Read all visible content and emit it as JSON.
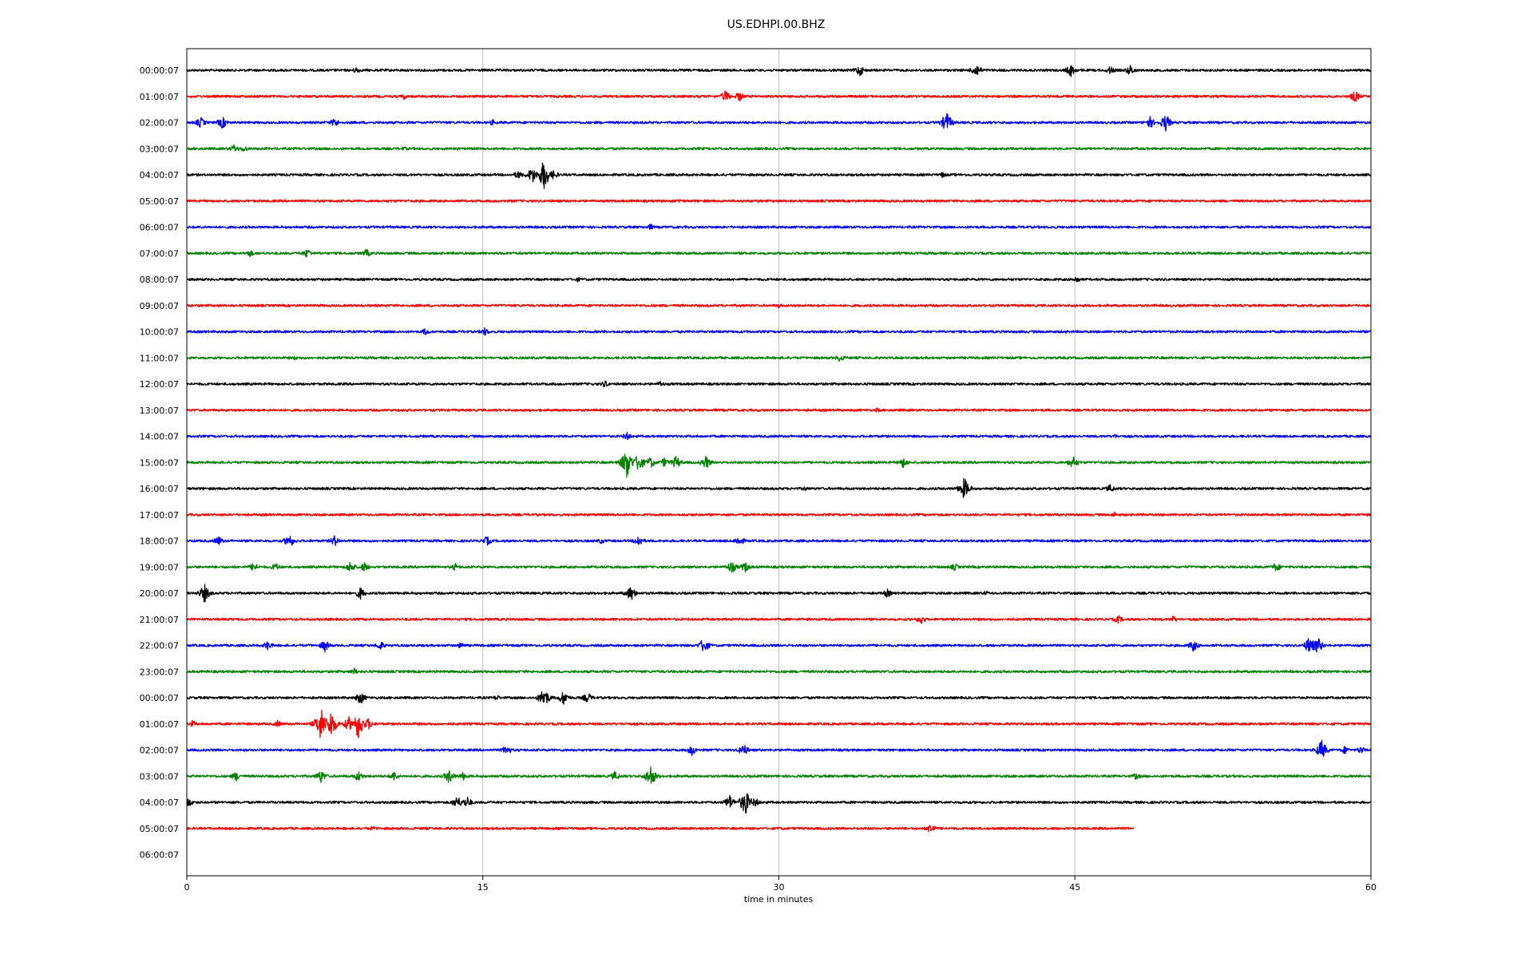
{
  "chart_data": {
    "type": "line",
    "title": "US.EDHPI.00.BHZ",
    "xlabel": "time in minutes",
    "ylabel": "",
    "xlim": [
      0,
      60
    ],
    "x_ticks": [
      "0",
      "15",
      "30",
      "45",
      "60"
    ],
    "x_tick_values": [
      0,
      15,
      30,
      45,
      60
    ],
    "grid": "vertical",
    "legend": "none",
    "trace_colors": [
      "#000000",
      "#ff0000",
      "#0000ff",
      "#008000"
    ],
    "rows": [
      {
        "label": "00:00:07",
        "end_minute": 60,
        "events": [
          [
            34.1,
            0.5
          ],
          [
            40.0,
            0.6
          ],
          [
            44.8,
            0.55
          ],
          [
            47.8,
            0.45
          ],
          [
            8.6,
            0.3
          ],
          [
            46.8,
            0.35
          ]
        ]
      },
      {
        "label": "01:00:07",
        "end_minute": 60,
        "events": [
          [
            27.3,
            0.5
          ],
          [
            28.0,
            0.4
          ],
          [
            59.2,
            0.5
          ],
          [
            11.0,
            0.25
          ]
        ]
      },
      {
        "label": "02:00:07",
        "end_minute": 60,
        "events": [
          [
            0.7,
            0.45
          ],
          [
            1.8,
            0.5
          ],
          [
            7.5,
            0.4
          ],
          [
            38.5,
            0.85
          ],
          [
            48.8,
            0.5
          ],
          [
            49.6,
            0.7
          ],
          [
            15.5,
            0.25
          ]
        ]
      },
      {
        "label": "03:00:07",
        "end_minute": 60,
        "events": [
          [
            2.4,
            0.35
          ],
          [
            2.9,
            0.3
          ],
          [
            11.0,
            0.2
          ]
        ]
      },
      {
        "label": "04:00:07",
        "end_minute": 60,
        "events": [
          [
            17.5,
            0.7
          ],
          [
            18.1,
            1.3
          ],
          [
            18.6,
            0.4
          ],
          [
            16.8,
            0.35
          ],
          [
            38.3,
            0.25
          ]
        ]
      },
      {
        "label": "05:00:07",
        "end_minute": 60,
        "events": [
          [
            25.0,
            0.2
          ]
        ]
      },
      {
        "label": "06:00:07",
        "end_minute": 60,
        "events": [
          [
            23.5,
            0.25
          ]
        ]
      },
      {
        "label": "07:00:07",
        "end_minute": 60,
        "events": [
          [
            3.2,
            0.3
          ],
          [
            6.1,
            0.4
          ],
          [
            9.1,
            0.35
          ]
        ]
      },
      {
        "label": "08:00:07",
        "end_minute": 60,
        "events": [
          [
            45.1,
            0.3
          ],
          [
            19.8,
            0.2
          ]
        ]
      },
      {
        "label": "09:00:07",
        "end_minute": 60,
        "events": [
          [
            30.0,
            0.2
          ]
        ]
      },
      {
        "label": "10:00:07",
        "end_minute": 60,
        "events": [
          [
            12.1,
            0.3
          ],
          [
            15.1,
            0.35
          ]
        ]
      },
      {
        "label": "11:00:07",
        "end_minute": 60,
        "events": [
          [
            33.1,
            0.35
          ],
          [
            5.5,
            0.2
          ]
        ]
      },
      {
        "label": "12:00:07",
        "end_minute": 60,
        "events": [
          [
            21.2,
            0.3
          ],
          [
            24.0,
            0.25
          ]
        ]
      },
      {
        "label": "13:00:07",
        "end_minute": 60,
        "events": [
          [
            35.0,
            0.2
          ]
        ]
      },
      {
        "label": "14:00:07",
        "end_minute": 60,
        "events": [
          [
            22.3,
            0.35
          ],
          [
            47.0,
            0.2
          ]
        ]
      },
      {
        "label": "15:00:07",
        "end_minute": 60,
        "events": [
          [
            22.3,
            1.3
          ],
          [
            22.9,
            0.8
          ],
          [
            23.5,
            0.5
          ],
          [
            24.2,
            0.4
          ],
          [
            24.8,
            0.55
          ],
          [
            26.3,
            0.55
          ],
          [
            36.3,
            0.45
          ],
          [
            44.9,
            0.55
          ]
        ]
      },
      {
        "label": "16:00:07",
        "end_minute": 60,
        "events": [
          [
            39.4,
            0.9
          ],
          [
            46.8,
            0.35
          ],
          [
            31.3,
            0.2
          ]
        ]
      },
      {
        "label": "17:00:07",
        "end_minute": 60,
        "events": [
          [
            47.0,
            0.25
          ]
        ]
      },
      {
        "label": "18:00:07",
        "end_minute": 60,
        "events": [
          [
            1.6,
            0.4
          ],
          [
            5.2,
            0.6
          ],
          [
            7.5,
            0.45
          ],
          [
            15.2,
            0.4
          ],
          [
            22.9,
            0.5
          ],
          [
            28.0,
            0.45
          ],
          [
            21.0,
            0.25
          ]
        ]
      },
      {
        "label": "19:00:07",
        "end_minute": 60,
        "events": [
          [
            3.4,
            0.4
          ],
          [
            4.5,
            0.35
          ],
          [
            8.3,
            0.5
          ],
          [
            9.0,
            0.4
          ],
          [
            13.6,
            0.3
          ],
          [
            27.6,
            0.55
          ],
          [
            28.3,
            0.45
          ],
          [
            38.9,
            0.3
          ],
          [
            55.2,
            0.4
          ]
        ]
      },
      {
        "label": "20:00:07",
        "end_minute": 60,
        "events": [
          [
            0.9,
            0.75
          ],
          [
            8.8,
            0.5
          ],
          [
            22.5,
            0.65
          ],
          [
            35.5,
            0.35
          ],
          [
            40.5,
            0.2
          ]
        ]
      },
      {
        "label": "21:00:07",
        "end_minute": 60,
        "events": [
          [
            37.2,
            0.4
          ],
          [
            47.2,
            0.35
          ],
          [
            50.0,
            0.3
          ]
        ]
      },
      {
        "label": "22:00:07",
        "end_minute": 60,
        "events": [
          [
            4.1,
            0.4
          ],
          [
            7.0,
            0.5
          ],
          [
            9.8,
            0.4
          ],
          [
            26.2,
            0.65
          ],
          [
            51.0,
            0.5
          ],
          [
            56.9,
            0.8
          ],
          [
            57.3,
            0.7
          ],
          [
            13.9,
            0.3
          ]
        ]
      },
      {
        "label": "23:00:07",
        "end_minute": 60,
        "events": [
          [
            8.5,
            0.3
          ]
        ]
      },
      {
        "label": "00:00:07",
        "end_minute": 60,
        "events": [
          [
            8.8,
            0.55
          ],
          [
            18.1,
            0.85
          ],
          [
            19.1,
            0.6
          ],
          [
            20.3,
            0.45
          ],
          [
            15.7,
            0.25
          ]
        ]
      },
      {
        "label": "01:00:07",
        "end_minute": 60,
        "events": [
          [
            6.8,
            1.4
          ],
          [
            7.3,
            1.2
          ],
          [
            8.2,
            0.6
          ],
          [
            8.7,
            1.3
          ],
          [
            9.2,
            0.5
          ],
          [
            0.3,
            0.3
          ],
          [
            4.6,
            0.3
          ]
        ]
      },
      {
        "label": "02:00:07",
        "end_minute": 60,
        "events": [
          [
            16.2,
            0.45
          ],
          [
            25.6,
            0.45
          ],
          [
            28.2,
            0.55
          ],
          [
            57.5,
            0.85
          ],
          [
            58.7,
            0.35
          ],
          [
            59.5,
            0.35
          ]
        ]
      },
      {
        "label": "03:00:07",
        "end_minute": 60,
        "events": [
          [
            2.5,
            0.4
          ],
          [
            6.8,
            0.55
          ],
          [
            8.7,
            0.45
          ],
          [
            10.5,
            0.4
          ],
          [
            13.3,
            0.6
          ],
          [
            14.0,
            0.35
          ],
          [
            21.7,
            0.4
          ],
          [
            23.5,
            0.9
          ],
          [
            48.1,
            0.3
          ]
        ]
      },
      {
        "label": "04:00:07",
        "end_minute": 60,
        "events": [
          [
            0.1,
            0.4
          ],
          [
            13.7,
            0.55
          ],
          [
            14.2,
            0.5
          ],
          [
            27.5,
            0.6
          ],
          [
            28.3,
            1.1
          ],
          [
            28.8,
            0.4
          ]
        ]
      },
      {
        "label": "05:00:07",
        "end_minute": 48,
        "events": [
          [
            37.7,
            0.45
          ],
          [
            9.4,
            0.2
          ]
        ]
      },
      {
        "label": "06:00:07",
        "end_minute": 0,
        "events": []
      }
    ]
  }
}
